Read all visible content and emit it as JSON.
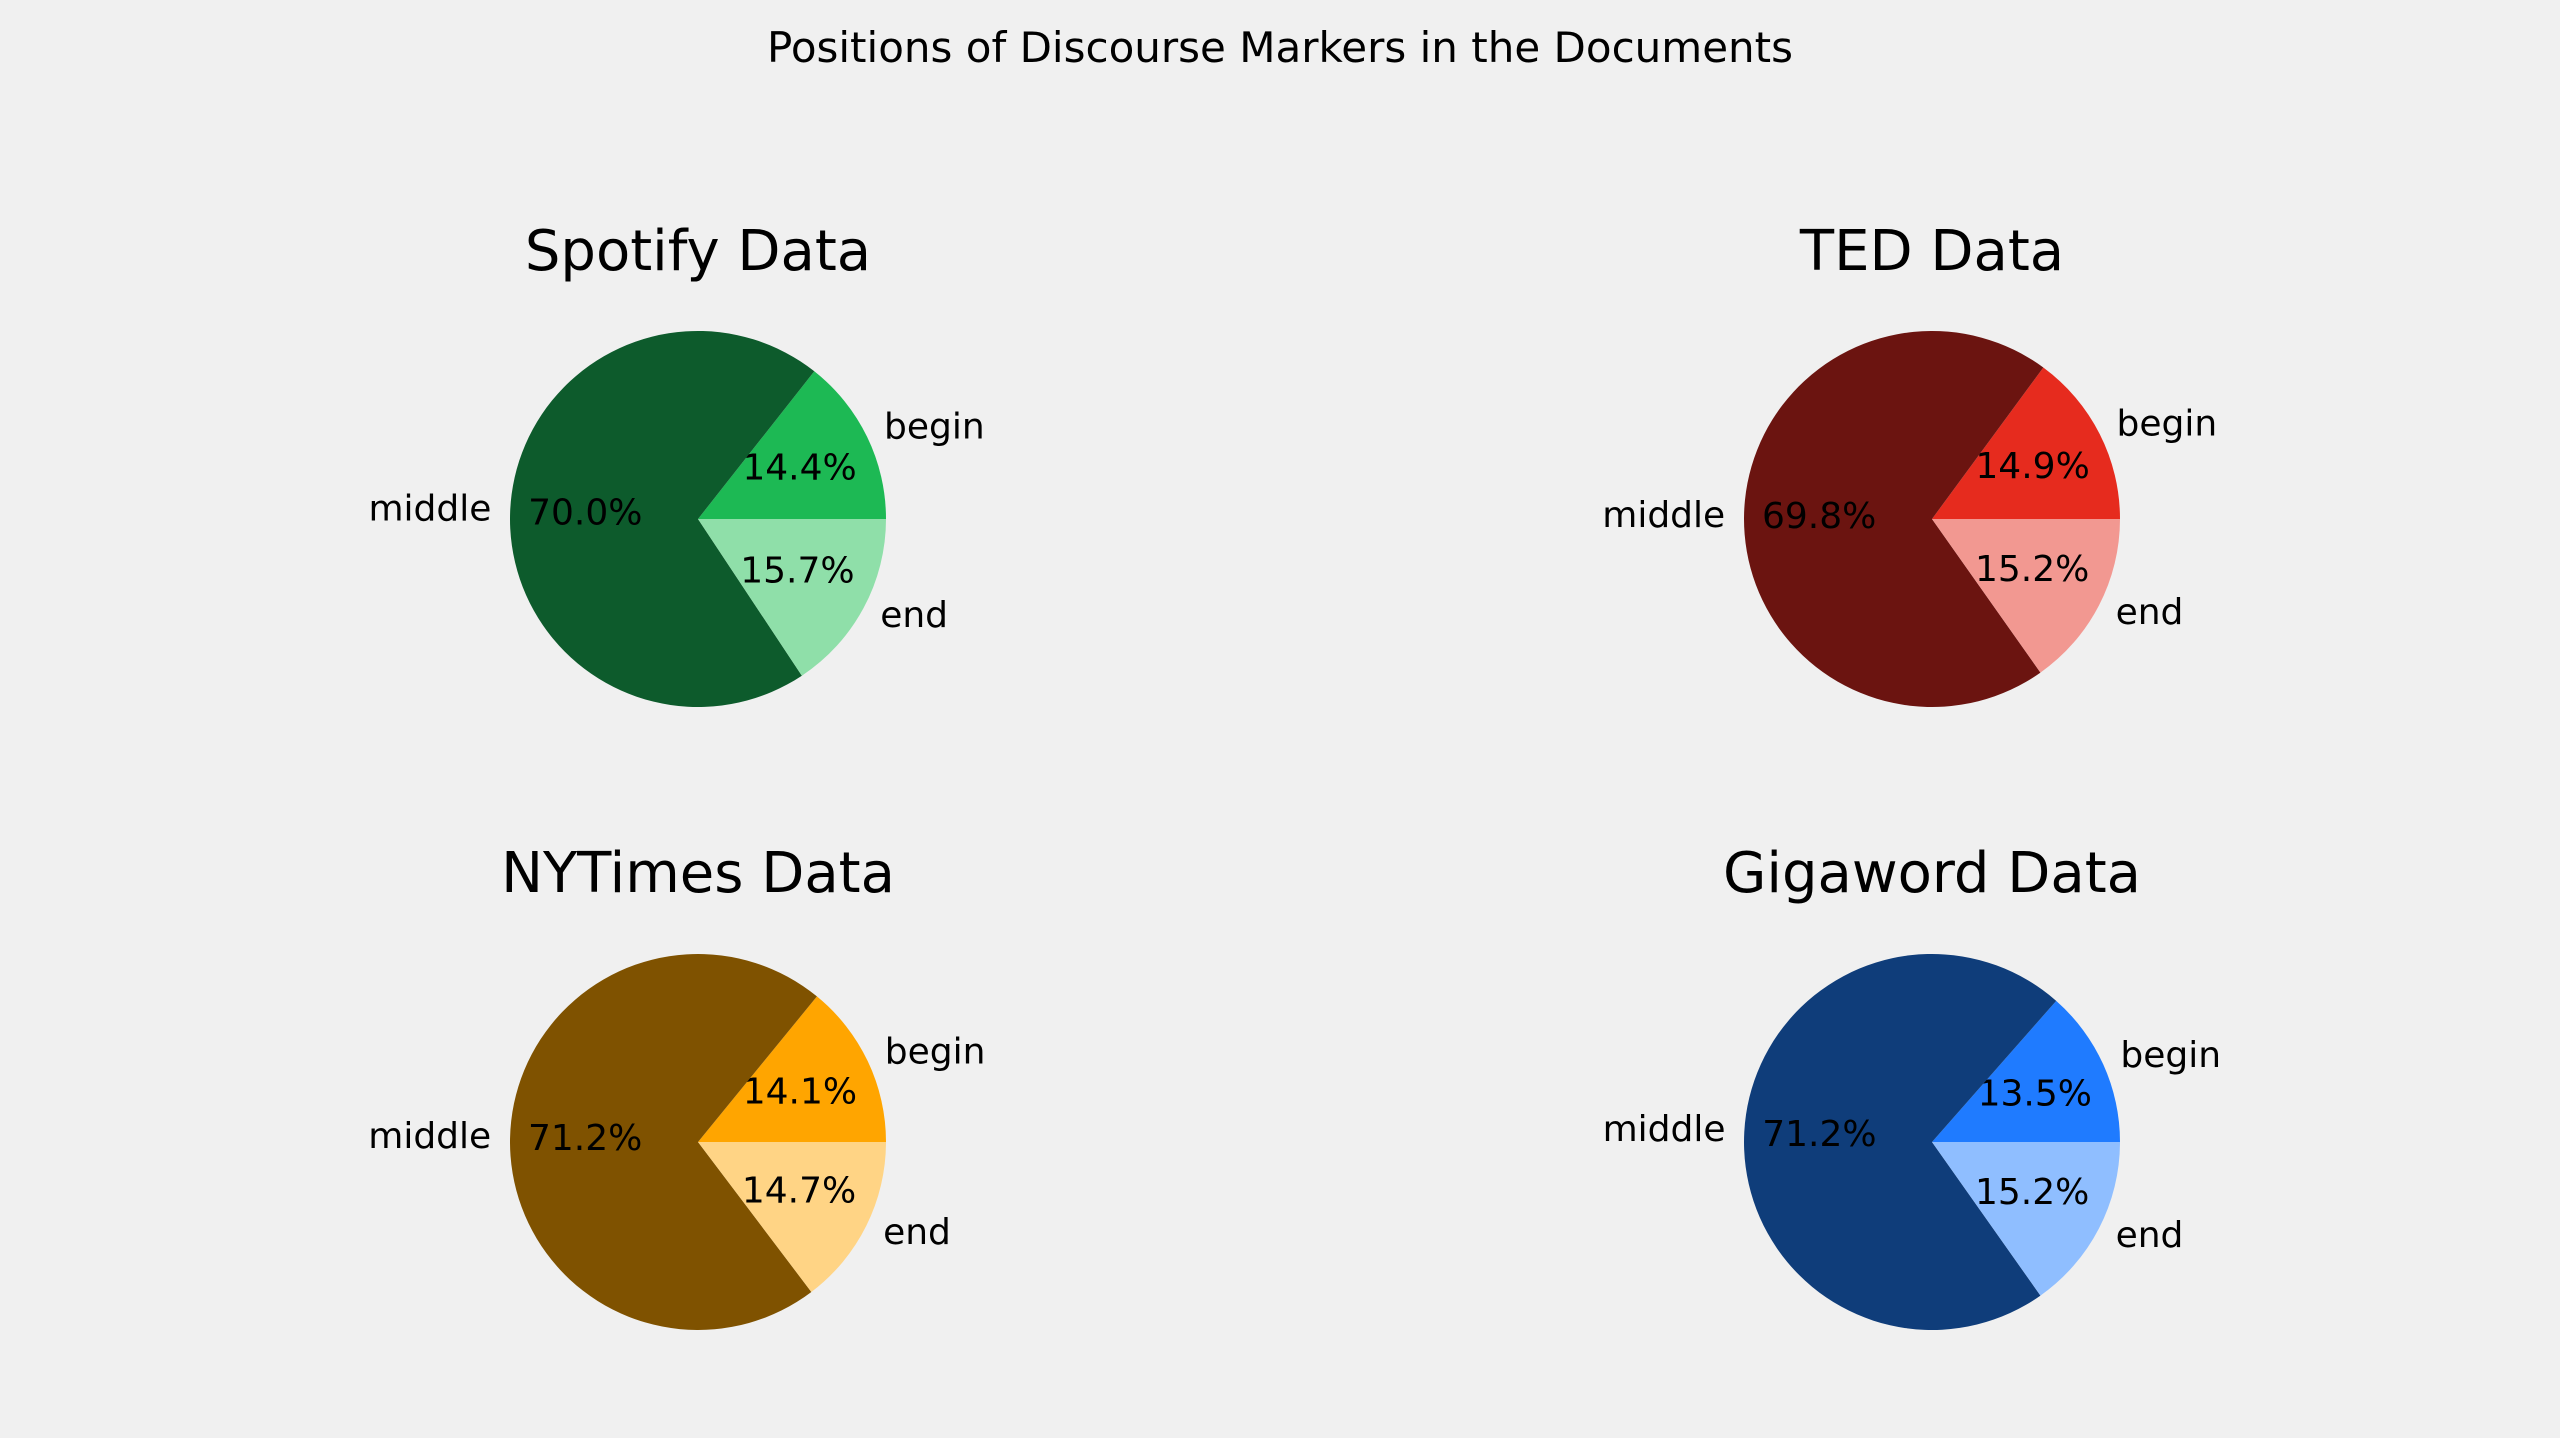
{
  "figure": {
    "title": "Positions of Discourse Markers in the Documents",
    "background": "#f0f0f0"
  },
  "chart_data": [
    {
      "type": "pie",
      "title": "Spotify Data",
      "labels": [
        "begin",
        "middle",
        "end"
      ],
      "values": [
        14.4,
        70.0,
        15.7
      ],
      "value_labels": [
        "14.4%",
        "70.0%",
        "15.7%"
      ],
      "colors": [
        "#1db954",
        "#0d5b2c",
        "#8fdfa9"
      ]
    },
    {
      "type": "pie",
      "title": "TED Data",
      "labels": [
        "begin",
        "middle",
        "end"
      ],
      "values": [
        14.9,
        69.8,
        15.2
      ],
      "value_labels": [
        "14.9%",
        "69.8%",
        "15.2%"
      ],
      "colors": [
        "#e62b1e",
        "#6b1410",
        "#f29891"
      ]
    },
    {
      "type": "pie",
      "title": "NYTimes Data",
      "labels": [
        "begin",
        "middle",
        "end"
      ],
      "values": [
        14.1,
        71.2,
        14.7
      ],
      "value_labels": [
        "14.1%",
        "71.2%",
        "14.7%"
      ],
      "colors": [
        "#ffa500",
        "#7f5200",
        "#ffd485"
      ]
    },
    {
      "type": "pie",
      "title": "Gigaword Data",
      "labels": [
        "begin",
        "middle",
        "end"
      ],
      "values": [
        13.5,
        71.2,
        15.2
      ],
      "value_labels": [
        "13.5%",
        "71.2%",
        "15.2%"
      ],
      "colors": [
        "#1f7bff",
        "#0f3d7a",
        "#8fbeff"
      ]
    }
  ]
}
